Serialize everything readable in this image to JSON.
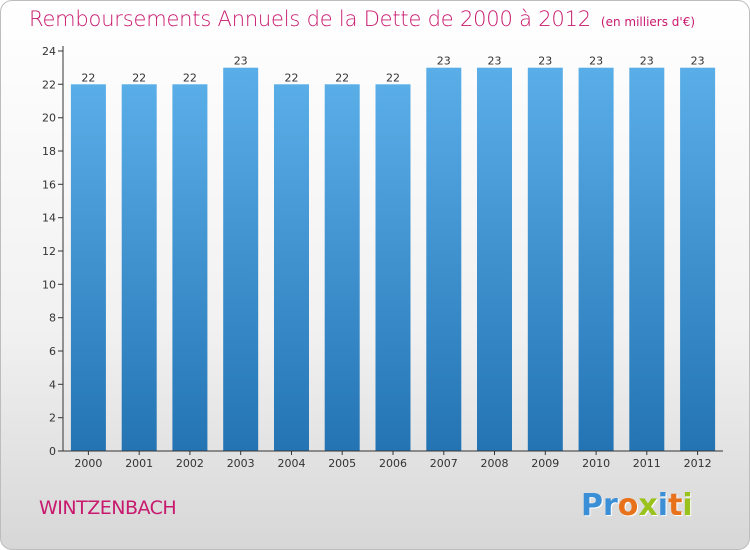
{
  "chart_data": {
    "type": "bar",
    "title": "Remboursements Annuels de la Dette de 2000 à 2012",
    "subtitle": "(en milliers d'€)",
    "categories": [
      "2000",
      "2001",
      "2002",
      "2003",
      "2004",
      "2005",
      "2006",
      "2007",
      "2008",
      "2009",
      "2010",
      "2011",
      "2012"
    ],
    "values": [
      22,
      22,
      22,
      23,
      22,
      22,
      22,
      23,
      23,
      23,
      23,
      23,
      23
    ],
    "data_labels": [
      "22",
      "22",
      "22",
      "23",
      "22",
      "22",
      "22",
      "23",
      "23",
      "23",
      "23",
      "23",
      "23"
    ],
    "ylim": [
      0,
      24
    ],
    "yticks": [
      "0",
      "2",
      "4",
      "6",
      "8",
      "10",
      "12",
      "14",
      "16",
      "18",
      "20",
      "22",
      "24"
    ],
    "xlabel": "",
    "ylabel": "",
    "grid": false,
    "colors": {
      "bar_light": "#5aaee8",
      "bar_dark": "#2474b4",
      "title": "#c8196e",
      "axis": "#333333"
    }
  },
  "footer": {
    "commune": "WINTZENBACH",
    "logo_letters": [
      {
        "ch": "P",
        "color": "#3a8fd6"
      },
      {
        "ch": "r",
        "color": "#3a8fd6"
      },
      {
        "ch": "o",
        "color": "#e8721c"
      },
      {
        "ch": "x",
        "color": "#9ac21c"
      },
      {
        "ch": "i",
        "color": "#3a8fd6"
      },
      {
        "ch": "t",
        "color": "#e8721c"
      },
      {
        "ch": "i",
        "color": "#9ac21c"
      }
    ]
  }
}
